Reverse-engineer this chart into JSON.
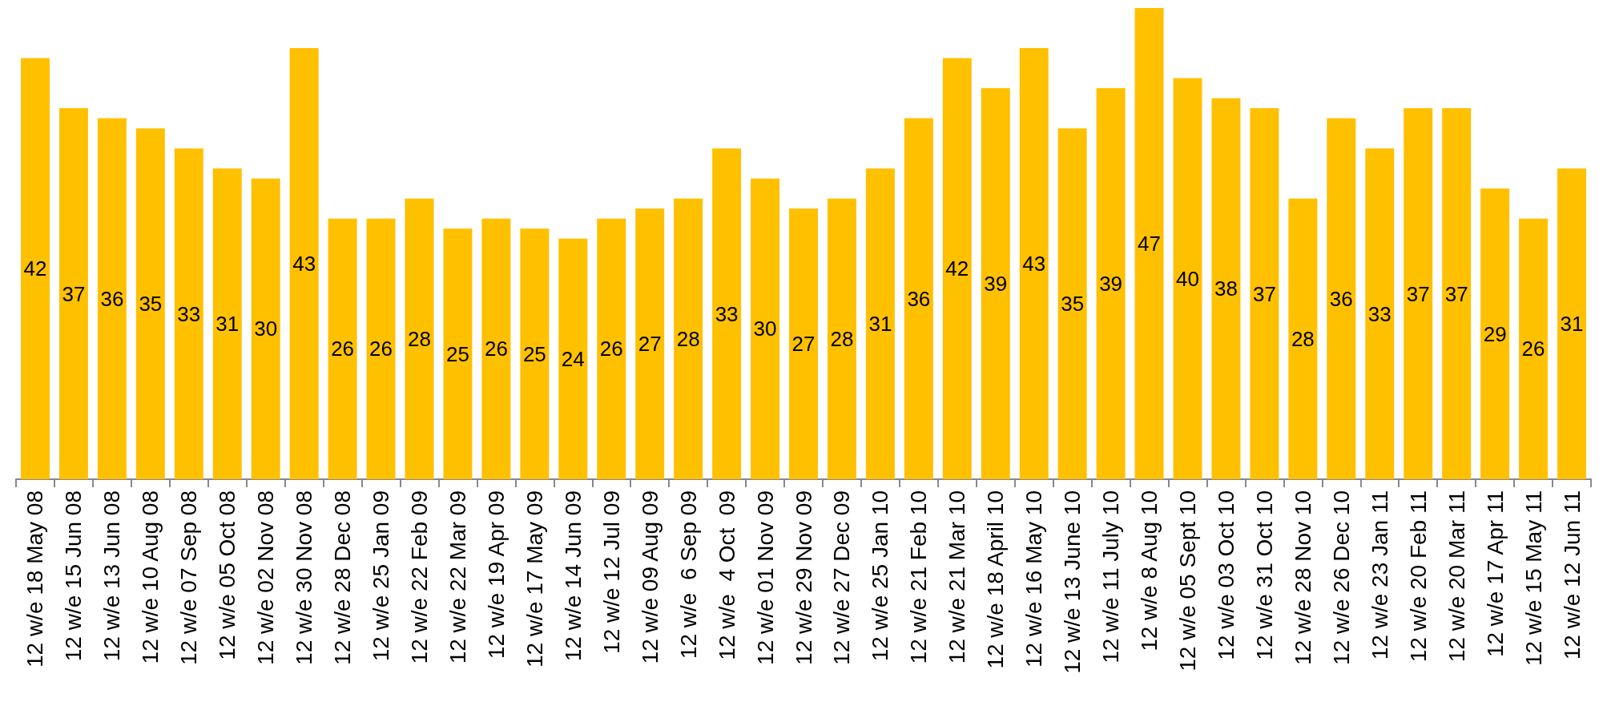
{
  "chart_data": {
    "type": "bar",
    "categories": [
      "12 w/e 18 May 08",
      "12 w/e 15 Jun 08",
      "12 w/e 13 Jun 08",
      "12 w/e 10 Aug 08",
      "12 w/e 07 Sep 08",
      "12 w/e 05 Oct 08",
      "12 w/e 02 Nov 08",
      "12 w/e 30 Nov 08",
      "12 w/e 28 Dec 08",
      "12 w/e 25 Jan 09",
      "12 w/e 22 Feb 09",
      "12 w/e 22 Mar 09",
      "12 w/e 19 Apr 09",
      "12 w/e 17 May 09",
      "12 w/e 14 Jun 09",
      "12 w/e 12 Jul 09",
      "12 w/e 09 Aug 09",
      "12 w/e  6 Sep 09",
      "12 w/e  4 Oct  09",
      "12 w/e 01 Nov 09",
      "12 w/e 29 Nov 09",
      "12 w/e 27 Dec 09",
      "12 w/e 25 Jan 10",
      "12 w/e 21 Feb 10",
      "12 w/e 21 Mar 10",
      "12 w/e 18 April 10",
      "12 w/e 16 May 10",
      "12 w/e 13 June 10",
      "12 w/e 11 July 10",
      "12 w/e 8 Aug 10",
      "12 w/e 05 Sept 10",
      "12 w/e 03 Oct 10",
      "12 w/e 31 Oct 10",
      "12 w/e 28 Nov 10",
      "12 w/e 26 Dec 10",
      "12 w/e 23 Jan 11",
      "12 w/e 20 Feb 11",
      "12 w/e 20 Mar 11",
      "12 w/e 17 Apr 11",
      "12 w/e 15 May 11",
      "12 w/e 12 Jun 11"
    ],
    "values": [
      42,
      37,
      36,
      35,
      33,
      31,
      30,
      43,
      26,
      26,
      28,
      25,
      26,
      25,
      24,
      26,
      27,
      28,
      33,
      30,
      27,
      28,
      31,
      36,
      42,
      39,
      43,
      35,
      39,
      47,
      40,
      38,
      37,
      28,
      36,
      33,
      37,
      37,
      29,
      26,
      31
    ],
    "color": "#ffc000",
    "data_labels": true
  }
}
